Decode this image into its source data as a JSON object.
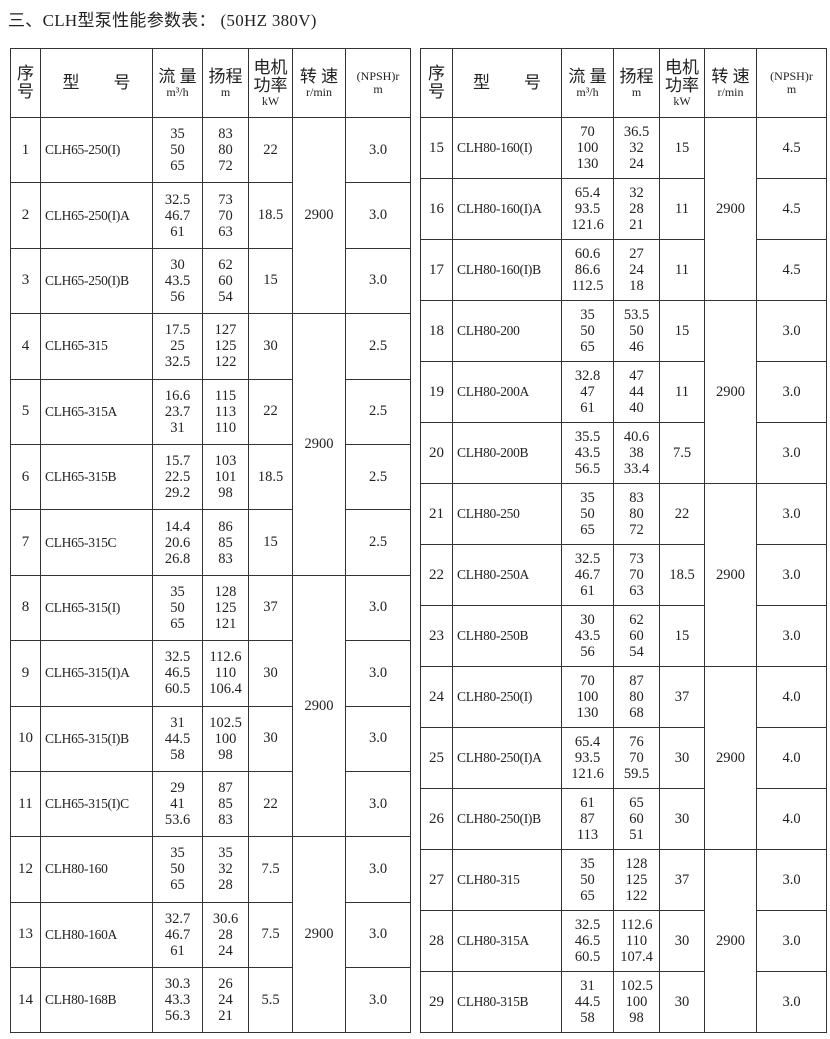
{
  "title": "三、CLH型泵性能参数表：  (50HZ  380V)",
  "headers": {
    "seq": [
      "序",
      "号"
    ],
    "model": "型　　号",
    "flow": "流 量",
    "flow_unit": "m³/h",
    "head": "扬程",
    "head_unit": "m",
    "power": [
      "电机",
      "功率"
    ],
    "power_unit": "kW",
    "speed": "转 速",
    "speed_unit": "r/min",
    "npsh": "(NPSH)r",
    "npsh_unit": "m"
  },
  "tables": [
    {
      "rows": [
        {
          "seq": "1",
          "model": "CLH65-250(I)",
          "flow": [
            "35",
            "50",
            "65"
          ],
          "head": [
            "83",
            "80",
            "72"
          ],
          "power": "22",
          "npsh": "3.0"
        },
        {
          "seq": "2",
          "model": "CLH65-250(I)A",
          "flow": [
            "32.5",
            "46.7",
            "61"
          ],
          "head": [
            "73",
            "70",
            "63"
          ],
          "power": "18.5",
          "npsh": "3.0"
        },
        {
          "seq": "3",
          "model": "CLH65-250(I)B",
          "flow": [
            "30",
            "43.5",
            "56"
          ],
          "head": [
            "62",
            "60",
            "54"
          ],
          "power": "15",
          "npsh": "3.0"
        },
        {
          "seq": "4",
          "model": "CLH65-315",
          "flow": [
            "17.5",
            "25",
            "32.5"
          ],
          "head": [
            "127",
            "125",
            "122"
          ],
          "power": "30",
          "npsh": "2.5"
        },
        {
          "seq": "5",
          "model": "CLH65-315A",
          "flow": [
            "16.6",
            "23.7",
            "31"
          ],
          "head": [
            "115",
            "113",
            "110"
          ],
          "power": "22",
          "npsh": "2.5"
        },
        {
          "seq": "6",
          "model": "CLH65-315B",
          "flow": [
            "15.7",
            "22.5",
            "29.2"
          ],
          "head": [
            "103",
            "101",
            "98"
          ],
          "power": "18.5",
          "npsh": "2.5"
        },
        {
          "seq": "7",
          "model": "CLH65-315C",
          "flow": [
            "14.4",
            "20.6",
            "26.8"
          ],
          "head": [
            "86",
            "85",
            "83"
          ],
          "power": "15",
          "npsh": "2.5"
        },
        {
          "seq": "8",
          "model": "CLH65-315(I)",
          "flow": [
            "35",
            "50",
            "65"
          ],
          "head": [
            "128",
            "125",
            "121"
          ],
          "power": "37",
          "npsh": "3.0"
        },
        {
          "seq": "9",
          "model": "CLH65-315(I)A",
          "flow": [
            "32.5",
            "46.5",
            "60.5"
          ],
          "head": [
            "112.6",
            "110",
            "106.4"
          ],
          "power": "30",
          "npsh": "3.0"
        },
        {
          "seq": "10",
          "model": "CLH65-315(I)B",
          "flow": [
            "31",
            "44.5",
            "58"
          ],
          "head": [
            "102.5",
            "100",
            "98"
          ],
          "power": "30",
          "npsh": "3.0"
        },
        {
          "seq": "11",
          "model": "CLH65-315(I)C",
          "flow": [
            "29",
            "41",
            "53.6"
          ],
          "head": [
            "87",
            "85",
            "83"
          ],
          "power": "22",
          "npsh": "3.0"
        },
        {
          "seq": "12",
          "model": "CLH80-160",
          "flow": [
            "35",
            "50",
            "65"
          ],
          "head": [
            "35",
            "32",
            "28"
          ],
          "power": "7.5",
          "npsh": "3.0"
        },
        {
          "seq": "13",
          "model": "CLH80-160A",
          "flow": [
            "32.7",
            "46.7",
            "61"
          ],
          "head": [
            "30.6",
            "28",
            "24"
          ],
          "power": "7.5",
          "npsh": "3.0"
        },
        {
          "seq": "14",
          "model": "CLH80-168B",
          "flow": [
            "30.3",
            "43.3",
            "56.3"
          ],
          "head": [
            "26",
            "24",
            "21"
          ],
          "power": "5.5",
          "npsh": "3.0"
        }
      ],
      "speed_groups": [
        {
          "value": "2900",
          "rows": 3
        },
        {
          "value": "2900",
          "rows": 4
        },
        {
          "value": "2900",
          "rows": 4
        },
        {
          "value": "2900",
          "rows": 3
        }
      ]
    },
    {
      "rows": [
        {
          "seq": "15",
          "model": "CLH80-160(I)",
          "flow": [
            "70",
            "100",
            "130"
          ],
          "head": [
            "36.5",
            "32",
            "24"
          ],
          "power": "15",
          "npsh": "4.5"
        },
        {
          "seq": "16",
          "model": "CLH80-160(I)A",
          "flow": [
            "65.4",
            "93.5",
            "121.6"
          ],
          "head": [
            "32",
            "28",
            "21"
          ],
          "power": "11",
          "npsh": "4.5"
        },
        {
          "seq": "17",
          "model": "CLH80-160(I)B",
          "flow": [
            "60.6",
            "86.6",
            "112.5"
          ],
          "head": [
            "27",
            "24",
            "18"
          ],
          "power": "11",
          "npsh": "4.5"
        },
        {
          "seq": "18",
          "model": "CLH80-200",
          "flow": [
            "35",
            "50",
            "65"
          ],
          "head": [
            "53.5",
            "50",
            "46"
          ],
          "power": "15",
          "npsh": "3.0"
        },
        {
          "seq": "19",
          "model": "CLH80-200A",
          "flow": [
            "32.8",
            "47",
            "61"
          ],
          "head": [
            "47",
            "44",
            "40"
          ],
          "power": "11",
          "npsh": "3.0"
        },
        {
          "seq": "20",
          "model": "CLH80-200B",
          "flow": [
            "35.5",
            "43.5",
            "56.5"
          ],
          "head": [
            "40.6",
            "38",
            "33.4"
          ],
          "power": "7.5",
          "npsh": "3.0"
        },
        {
          "seq": "21",
          "model": "CLH80-250",
          "flow": [
            "35",
            "50",
            "65"
          ],
          "head": [
            "83",
            "80",
            "72"
          ],
          "power": "22",
          "npsh": "3.0"
        },
        {
          "seq": "22",
          "model": "CLH80-250A",
          "flow": [
            "32.5",
            "46.7",
            "61"
          ],
          "head": [
            "73",
            "70",
            "63"
          ],
          "power": "18.5",
          "npsh": "3.0"
        },
        {
          "seq": "23",
          "model": "CLH80-250B",
          "flow": [
            "30",
            "43.5",
            "56"
          ],
          "head": [
            "62",
            "60",
            "54"
          ],
          "power": "15",
          "npsh": "3.0"
        },
        {
          "seq": "24",
          "model": "CLH80-250(I)",
          "flow": [
            "70",
            "100",
            "130"
          ],
          "head": [
            "87",
            "80",
            "68"
          ],
          "power": "37",
          "npsh": "4.0"
        },
        {
          "seq": "25",
          "model": "CLH80-250(I)A",
          "flow": [
            "65.4",
            "93.5",
            "121.6"
          ],
          "head": [
            "76",
            "70",
            "59.5"
          ],
          "power": "30",
          "npsh": "4.0"
        },
        {
          "seq": "26",
          "model": "CLH80-250(I)B",
          "flow": [
            "61",
            "87",
            "113"
          ],
          "head": [
            "65",
            "60",
            "51"
          ],
          "power": "30",
          "npsh": "4.0"
        },
        {
          "seq": "27",
          "model": "CLH80-315",
          "flow": [
            "35",
            "50",
            "65"
          ],
          "head": [
            "128",
            "125",
            "122"
          ],
          "power": "37",
          "npsh": "3.0"
        },
        {
          "seq": "28",
          "model": "CLH80-315A",
          "flow": [
            "32.5",
            "46.5",
            "60.5"
          ],
          "head": [
            "112.6",
            "110",
            "107.4"
          ],
          "power": "30",
          "npsh": "3.0"
        },
        {
          "seq": "29",
          "model": "CLH80-315B",
          "flow": [
            "31",
            "44.5",
            "58"
          ],
          "head": [
            "102.5",
            "100",
            "98"
          ],
          "power": "30",
          "npsh": "3.0"
        }
      ],
      "speed_groups": [
        {
          "value": "2900",
          "rows": 3
        },
        {
          "value": "2900",
          "rows": 3
        },
        {
          "value": "2900",
          "rows": 3
        },
        {
          "value": "2900",
          "rows": 3
        },
        {
          "value": "2900",
          "rows": 3
        }
      ]
    }
  ]
}
